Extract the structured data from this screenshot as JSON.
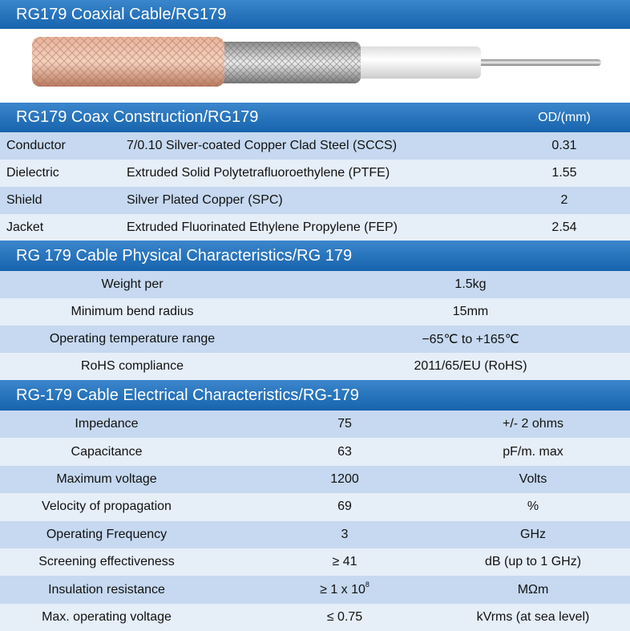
{
  "header": {
    "title": "RG179 Coaxial Cable/RG179"
  },
  "construction": {
    "title": "RG179 Coax Construction/RG179",
    "column": "OD/(mm)",
    "rows": [
      [
        "Conductor",
        "7/0.10 Silver-coated Copper Clad Steel (SCCS)",
        "0.31"
      ],
      [
        "Dielectric",
        "Extruded Solid Polytetrafluoroethylene (PTFE)",
        "1.55"
      ],
      [
        "Shield",
        "Silver Plated Copper (SPC)",
        "2"
      ],
      [
        "Jacket",
        "Extruded Fluorinated Ethylene Propylene (FEP)",
        "2.54"
      ]
    ]
  },
  "physical": {
    "title": "RG 179 Cable Physical Characteristics/RG 179",
    "rows": [
      [
        "Weight per",
        "1.5kg"
      ],
      [
        "Minimum bend radius",
        "15mm"
      ],
      [
        "Operating temperature range",
        "−65℃ to +165℃"
      ],
      [
        "RoHS compliance",
        "2011/65/EU (RoHS)"
      ]
    ]
  },
  "electrical": {
    "title": "RG-179 Cable Electrical Characteristics/RG-179",
    "rows": [
      [
        "Impedance",
        "75",
        "+/- 2 ohms"
      ],
      [
        "Capacitance",
        "63",
        "pF/m. max"
      ],
      [
        "Maximum voltage",
        "1200",
        "Volts"
      ],
      [
        "Velocity of propagation",
        "69",
        "%"
      ],
      [
        "Operating Frequency",
        "3",
        "GHz"
      ],
      [
        "Screening effectiveness",
        "≥ 41",
        "dB (up to 1 GHz)"
      ],
      [
        "Insulation resistance",
        "≥ 1 x 10",
        "MΩm"
      ],
      [
        "Max. operating voltage",
        "≤ 0.75",
        "kVrms (at sea level)"
      ]
    ],
    "exponent": "8"
  }
}
